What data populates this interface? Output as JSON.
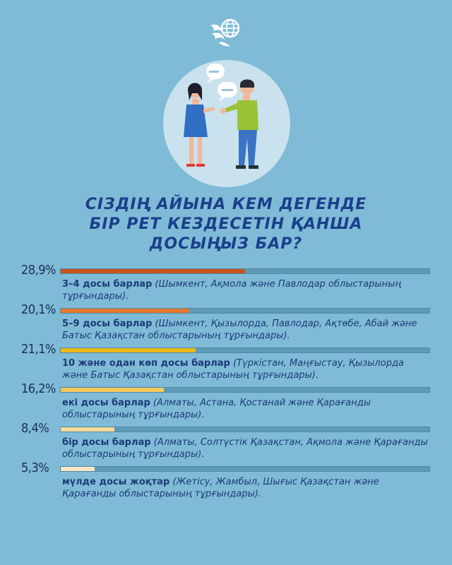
{
  "title_lines": [
    "СІЗДІҢ АЙЫНА КЕМ ДЕГЕНДЕ",
    "БІР РЕТ КЕЗДЕСЕТІН ҚАНША",
    "ДОСЫҢЫЗ БАР?"
  ],
  "colors": {
    "background": "#7fbbd6",
    "title": "#1b3f8c",
    "track": "#5d9ab6",
    "illustration_circle": "#c9e2ee"
  },
  "chart_data": {
    "type": "bar",
    "orientation": "horizontal",
    "xlim": [
      0,
      58
    ],
    "categories": [
      "3–4 досы барлар",
      "5–9 досы барлар",
      "10 және одан көп досы барлар",
      "екі досы барлар",
      "бір досы барлар",
      "мүлде досы жоқтар"
    ],
    "values": [
      28.9,
      20.1,
      21.1,
      16.2,
      8.4,
      5.3
    ],
    "value_labels": [
      "28,9%",
      "20,1%",
      "21,1%",
      "16,2%",
      "8,4%",
      "5,3%"
    ],
    "notes": [
      "(Шымкент, Ақмола және Павлодар облыстарының тұрғындары).",
      "(Шымкент, Қызылорда, Павлодар, Ақтөбе, Абай және Батыс Қазақстан облыстарының тұрғындары).",
      "(Түркістан, Маңғыстау, Қызылорда және Батыс Қазақстан облыстарының тұрғындары).",
      "(Алматы, Астана, Қостанай және Қарағанды облыстарының тұрғындары).",
      "(Алматы, Солтүстік Қазақстан, Ақмола және Қарағанды облыстарының тұрғындары).",
      "(Жетісу, Жамбыл, Шығыс Қазақстан және Қарағанды облыстарының тұрғындары)."
    ],
    "colors": [
      "#c8541c",
      "#e5782d",
      "#edb91a",
      "#f5c85a",
      "#f8d99a",
      "#fbe7c2"
    ]
  }
}
